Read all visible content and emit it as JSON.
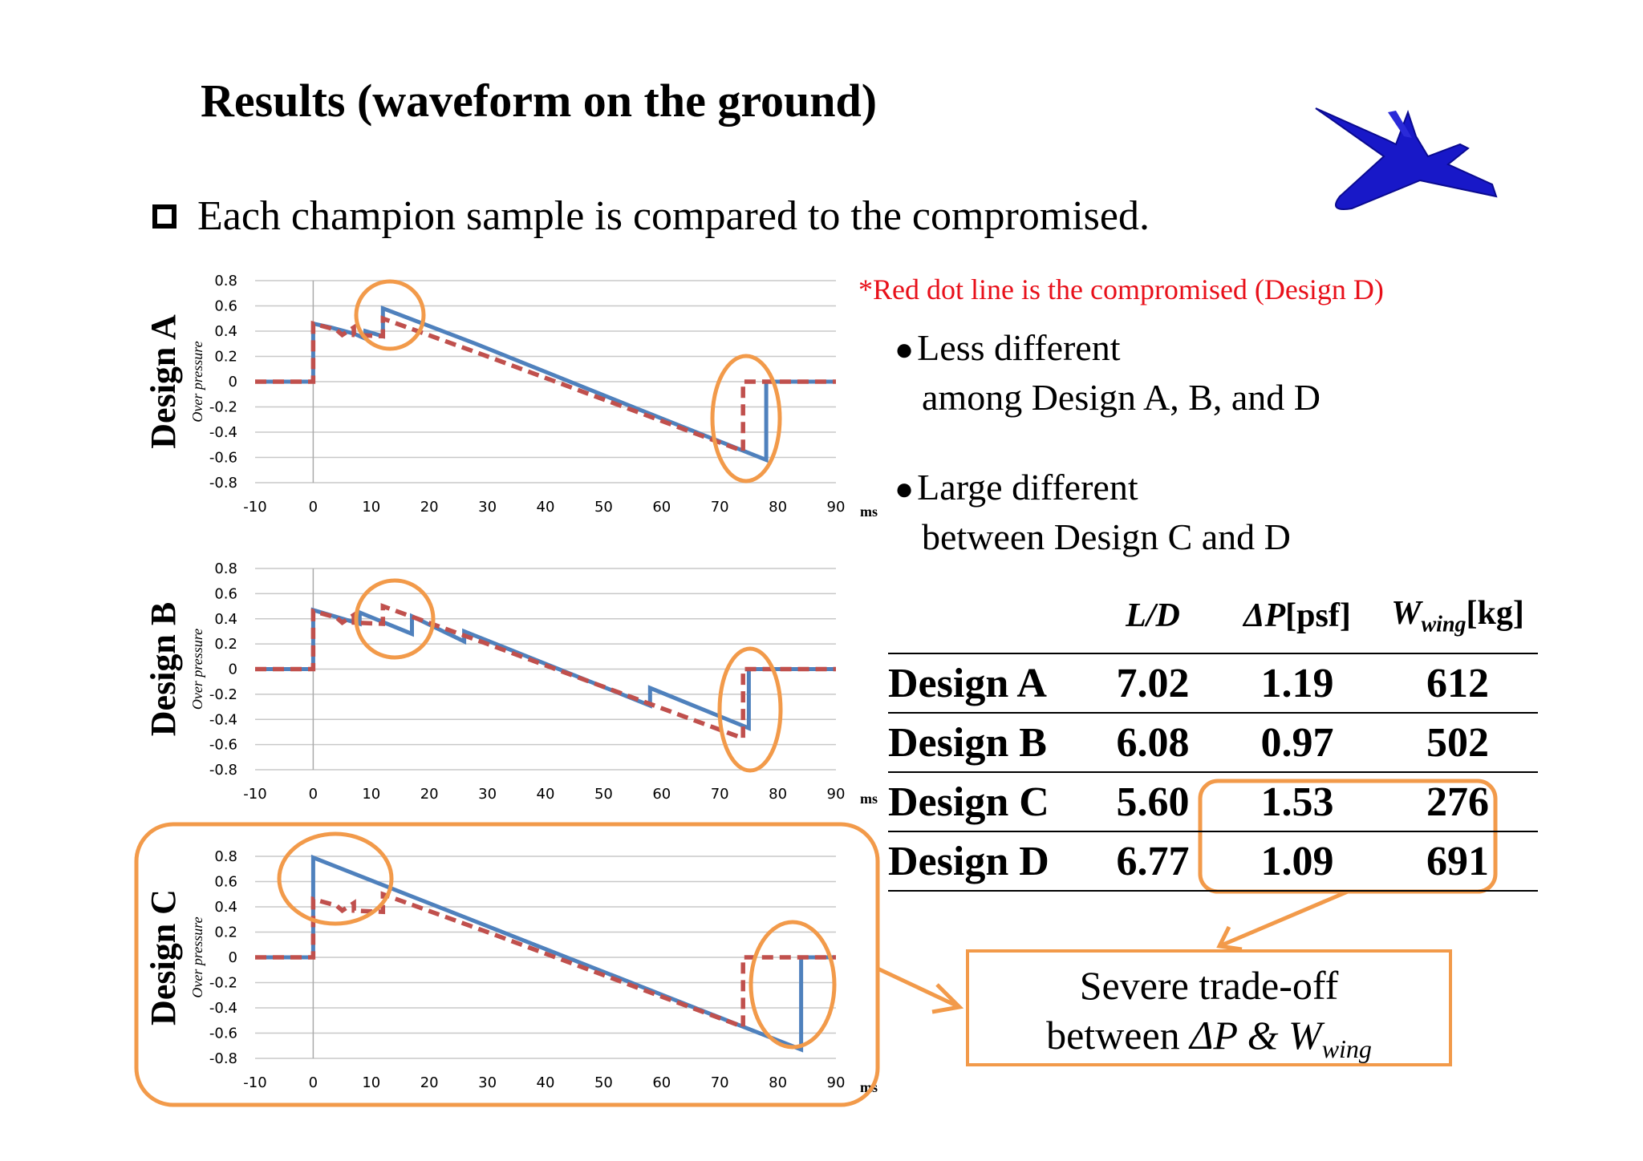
{
  "title": "Results (waveform on the ground)",
  "bullet": "Each champion sample is compared to the compromised.",
  "note": "*Red dot line is the compromised (Design D)",
  "points": [
    {
      "line1": "Less different",
      "line2": "among Design A, B, and D"
    },
    {
      "line1": "Large different",
      "line2": "between Design C and D"
    }
  ],
  "x_unit": "ms",
  "y_axis_label": "Over pressure",
  "colors": {
    "champion": "#4f81bd",
    "compromised": "#c0504d",
    "highlight": "#f29a4a"
  },
  "table": {
    "headers": {
      "ld": "L/D",
      "dp": "ΔP",
      "dp_unit": "[psf]",
      "w": "W",
      "w_sub": "wing",
      "w_unit": "[kg]"
    },
    "rows": [
      {
        "name": "Design A",
        "ld": "7.02",
        "dp": "1.19",
        "w": "612"
      },
      {
        "name": "Design B",
        "ld": "6.08",
        "dp": "0.97",
        "w": "502"
      },
      {
        "name": "Design C",
        "ld": "5.60",
        "dp": "1.53",
        "w": "276"
      },
      {
        "name": "Design D",
        "ld": "6.77",
        "dp": "1.09",
        "w": "691"
      }
    ]
  },
  "callout": {
    "line1": "Severe trade-off",
    "line2_prefix": "between ",
    "dp": "ΔP",
    "amp": " & ",
    "w": "W",
    "w_sub": "wing"
  },
  "chart_data": [
    {
      "type": "line",
      "design_label": "Design A",
      "xlim": [
        -10,
        90
      ],
      "ylim": [
        -0.8,
        0.8
      ],
      "xticks": [
        -10,
        0,
        10,
        20,
        30,
        40,
        50,
        60,
        70,
        80,
        90
      ],
      "yticks": [
        0.8,
        0.6,
        0.4,
        0.2,
        0,
        -0.2,
        -0.4,
        -0.6,
        -0.8
      ],
      "series": [
        {
          "role": "champion",
          "style": "solid",
          "x": [
            -10,
            0,
            0,
            3,
            7,
            9,
            9,
            12,
            12,
            28,
            55,
            78,
            78,
            90
          ],
          "y": [
            0,
            0,
            0.46,
            0.43,
            0.38,
            0.34,
            0.4,
            0.36,
            0.58,
            0.3,
            -0.2,
            -0.62,
            0,
            0
          ]
        },
        {
          "role": "compromised",
          "style": "dashed",
          "x": [
            -10,
            0,
            0,
            4,
            5,
            7,
            7,
            12,
            12,
            30,
            74,
            74,
            90
          ],
          "y": [
            0,
            0,
            0.46,
            0.41,
            0.37,
            0.43,
            0.37,
            0.36,
            0.5,
            0.2,
            -0.55,
            0,
            0
          ]
        }
      ]
    },
    {
      "type": "line",
      "design_label": "Design B",
      "xlim": [
        -10,
        90
      ],
      "ylim": [
        -0.8,
        0.8
      ],
      "xticks": [
        -10,
        0,
        10,
        20,
        30,
        40,
        50,
        60,
        70,
        80,
        90
      ],
      "yticks": [
        0.8,
        0.6,
        0.4,
        0.2,
        0,
        -0.2,
        -0.4,
        -0.6,
        -0.8
      ],
      "series": [
        {
          "role": "champion",
          "style": "solid",
          "x": [
            -10,
            0,
            0,
            8,
            8,
            17,
            17,
            26,
            26,
            58,
            58,
            75,
            75,
            90
          ],
          "y": [
            0,
            0,
            0.47,
            0.36,
            0.45,
            0.28,
            0.42,
            0.22,
            0.3,
            -0.29,
            -0.15,
            -0.47,
            0,
            0
          ]
        },
        {
          "role": "compromised",
          "style": "dashed",
          "x": [
            -10,
            0,
            0,
            4,
            5,
            7,
            7,
            12,
            12,
            30,
            74,
            74,
            90
          ],
          "y": [
            0,
            0,
            0.46,
            0.41,
            0.37,
            0.43,
            0.37,
            0.36,
            0.5,
            0.2,
            -0.55,
            0,
            0
          ]
        }
      ]
    },
    {
      "type": "line",
      "design_label": "Design C",
      "xlim": [
        -10,
        90
      ],
      "ylim": [
        -0.8,
        0.8
      ],
      "xticks": [
        -10,
        0,
        10,
        20,
        30,
        40,
        50,
        60,
        70,
        80,
        90
      ],
      "yticks": [
        0.8,
        0.6,
        0.4,
        0.2,
        0,
        -0.2,
        -0.4,
        -0.6,
        -0.8
      ],
      "series": [
        {
          "role": "champion",
          "style": "solid",
          "x": [
            -10,
            0,
            0,
            84,
            84,
            90
          ],
          "y": [
            0,
            0,
            0.79,
            -0.73,
            0,
            0
          ]
        },
        {
          "role": "compromised",
          "style": "dashed",
          "x": [
            -10,
            0,
            0,
            4,
            5,
            7,
            7,
            12,
            12,
            30,
            74,
            74,
            90
          ],
          "y": [
            0,
            0,
            0.46,
            0.41,
            0.37,
            0.43,
            0.37,
            0.36,
            0.5,
            0.2,
            -0.55,
            0,
            0
          ]
        }
      ]
    }
  ]
}
